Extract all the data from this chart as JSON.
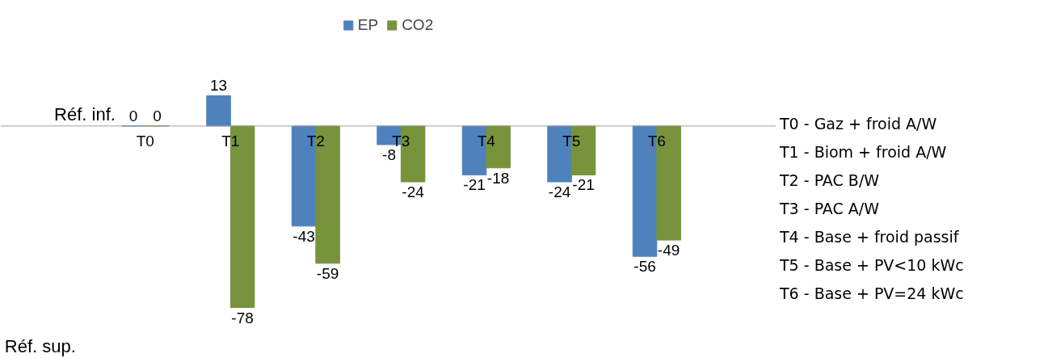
{
  "chart_data": {
    "type": "bar",
    "categories": [
      "T0",
      "T1",
      "T2",
      "T3",
      "T4",
      "T5",
      "T6"
    ],
    "series": [
      {
        "name": "EP",
        "color": "#4f81bd",
        "values": [
          0,
          13,
          -43,
          -8,
          -21,
          -24,
          -56
        ]
      },
      {
        "name": "CO2",
        "color": "#77933c",
        "values": [
          0,
          -78,
          -59,
          -24,
          -18,
          -21,
          -49
        ]
      }
    ],
    "data_labels": true,
    "legend": "top",
    "annotations": [
      "Réf. inf.",
      "Réf. sup.",
      "T0 - Gaz + froid A/W",
      "T1 - Biom + froid A/W",
      "T2 - PAC B/W",
      "T3 - PAC A/W",
      "T4 - Base + froid passif",
      "T5 - Base + PV<10 kWc",
      "T6 - Base + PV=24 kWc"
    ]
  }
}
